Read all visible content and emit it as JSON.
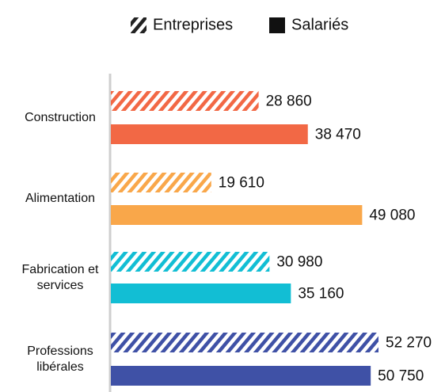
{
  "chart_data": {
    "type": "hbar_grouped",
    "categories": [
      "Construction",
      "Alimentation",
      "Fabrication et services",
      "Professions libérales"
    ],
    "colors": [
      "#f26845",
      "#f9a74a",
      "#12bed4",
      "#3f51a6"
    ],
    "series": [
      {
        "name": "Entreprises",
        "pattern": "hatch",
        "color": "#222222",
        "values": [
          28860,
          19610,
          30980,
          52270
        ],
        "value_labels": [
          "28 860",
          "19 610",
          "30 980",
          "52 270"
        ]
      },
      {
        "name": "Salariés",
        "pattern": "solid",
        "color": "#111111",
        "values": [
          38470,
          49080,
          35160,
          50750
        ],
        "value_labels": [
          "38 470",
          "49 080",
          "35 160",
          "50 750"
        ]
      }
    ]
  }
}
